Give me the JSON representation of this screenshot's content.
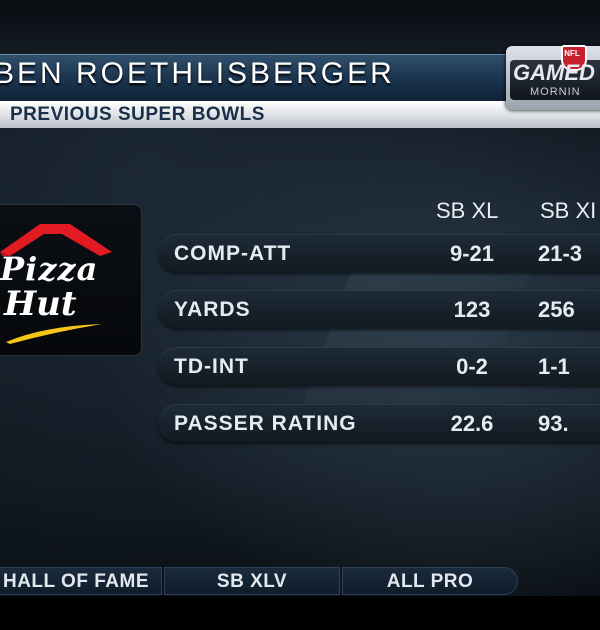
{
  "header": {
    "player_name": "BEN ROETHLISBERGER",
    "subtitle": "PREVIOUS SUPER BOWLS"
  },
  "badge": {
    "league": "NFL",
    "brand_line1": "GAMED",
    "brand_line2": "MORNIN"
  },
  "sponsor": {
    "word1": "Pizza",
    "word2": "Hut",
    "roof_color": "#e21a22",
    "swoosh_color": "#f5c518"
  },
  "table": {
    "columns": [
      "SB XL",
      "SB XI"
    ],
    "rows": [
      {
        "label": "COMP-ATT",
        "v1": "9-21",
        "v2": "21-3"
      },
      {
        "label": "YARDS",
        "v1": "123",
        "v2": "256"
      },
      {
        "label": "TD-INT",
        "v1": "0-2",
        "v2": "1-1"
      },
      {
        "label": "PASSER RATING",
        "v1": "22.6",
        "v2": "93."
      }
    ]
  },
  "nav": {
    "items": [
      "HALL OF FAME",
      "SB XLV",
      "ALL PRO"
    ]
  }
}
